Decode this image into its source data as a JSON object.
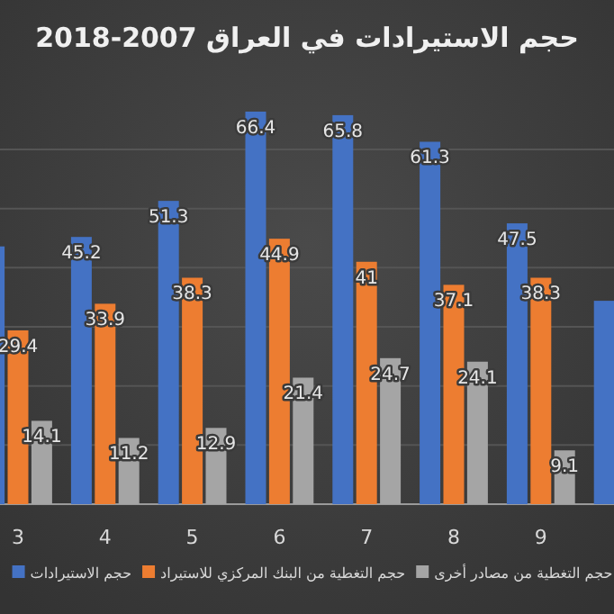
{
  "chart_data": {
    "type": "bar",
    "title": "حجم الاستيرادات في العراق 2007-2018",
    "categories": [
      "3",
      "4",
      "5",
      "6",
      "7",
      "8",
      "9",
      null
    ],
    "series": [
      {
        "name": "حجم الاستيرادات",
        "color": "#4472c4",
        "values": [
          43.6,
          45.2,
          51.3,
          66.4,
          65.8,
          61.3,
          47.5,
          34.4
        ],
        "value_labels": [
          null,
          "45.2",
          "51.3",
          "66.4",
          "65.8",
          "61.3",
          "47.5",
          null
        ]
      },
      {
        "name": "حجم التغطية من البنك المركزي للاستيراد",
        "color": "#ed7d31",
        "values": [
          29.4,
          33.9,
          38.3,
          44.9,
          41,
          37.1,
          38.3,
          null
        ],
        "value_labels": [
          "29.4",
          "33.9",
          "38.3",
          "44.9",
          "41",
          "37.1",
          "38.3",
          null
        ]
      },
      {
        "name": "حجم التغطية من مصادر أخرى",
        "color": "#a5a5a5",
        "values": [
          14.1,
          11.2,
          12.9,
          21.4,
          24.7,
          24.1,
          9.1,
          null
        ],
        "value_labels": [
          "14.1",
          "11.2",
          "12.9",
          "21.4",
          "24.7",
          "24.1",
          "9.1",
          null
        ]
      }
    ],
    "yticks": [
      {
        "value": 0,
        "label": null
      },
      {
        "value": 10,
        "label": null
      },
      {
        "value": 20,
        "label": null
      },
      {
        "value": 30,
        "label": null
      },
      {
        "value": 40,
        "label": null
      },
      {
        "value": 50,
        "label": null
      },
      {
        "value": 60,
        "label": null
      }
    ],
    "grid": "y",
    "legend": "bottom"
  }
}
